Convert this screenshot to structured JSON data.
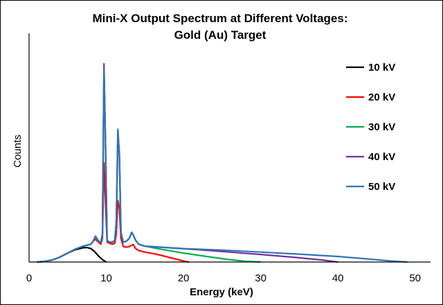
{
  "chart_data": {
    "type": "line",
    "title_line1": "Mini-X Output Spectrum at Different Voltages:",
    "title_line2": "Gold (Au) Target",
    "xlabel": "Energy (keV)",
    "ylabel": "Counts",
    "xlim": [
      0,
      52
    ],
    "ylim": [
      0,
      100
    ],
    "xticks": [
      0,
      10,
      20,
      30,
      40,
      50
    ],
    "grid": false,
    "legend_position": "right",
    "series": [
      {
        "name": "10 kV",
        "color": "#000000",
        "x": [
          1,
          2,
          3,
          4,
          5,
          6,
          7,
          7.5,
          8,
          8.5,
          9,
          9.5,
          10
        ],
        "y": [
          0,
          0.3,
          1,
          2.5,
          4.5,
          6.2,
          7.2,
          7.3,
          6.8,
          5.2,
          3.0,
          1.2,
          0
        ]
      },
      {
        "name": "20 kV",
        "color": "#ff0000",
        "x": [
          1,
          2,
          3,
          4,
          5,
          6,
          7,
          7.5,
          8,
          8.3,
          8.6,
          9,
          9.3,
          9.5,
          9.7,
          9.9,
          10.1,
          10.4,
          10.8,
          11.1,
          11.3,
          11.5,
          11.7,
          11.9,
          12.2,
          12.6,
          13.0,
          13.3,
          13.5,
          13.8,
          14.2,
          15,
          16,
          17,
          18,
          19,
          20,
          20.7
        ],
        "y": [
          0,
          0.3,
          1,
          2.5,
          4.5,
          6.5,
          8,
          8.5,
          9,
          10.5,
          11.5,
          10,
          9,
          12,
          50,
          30,
          10,
          9.5,
          9,
          9.5,
          14,
          31,
          27,
          12,
          7.8,
          7.5,
          7.8,
          8.5,
          8.8,
          6.8,
          5.8,
          5,
          4.3,
          3.5,
          2.5,
          1.5,
          0.5,
          0
        ]
      },
      {
        "name": "30 kV",
        "color": "#00b050",
        "x": [
          1,
          2,
          3,
          4,
          5,
          6,
          7,
          7.5,
          8,
          8.3,
          8.6,
          9,
          9.3,
          9.5,
          9.7,
          9.9,
          10.1,
          10.4,
          10.8,
          11.1,
          11.3,
          11.5,
          11.7,
          11.9,
          12.2,
          12.6,
          13.0,
          13.3,
          13.5,
          13.8,
          14.2,
          15,
          17,
          20,
          23,
          26,
          28,
          30
        ],
        "y": [
          0,
          0.3,
          1,
          2.5,
          4.5,
          6.5,
          8,
          8.5,
          9,
          10.5,
          13,
          10.5,
          10,
          14,
          96,
          60,
          11,
          10,
          10,
          11,
          20,
          64,
          54,
          15,
          10,
          10.5,
          12,
          15,
          13.5,
          11,
          9,
          8,
          6.5,
          4.5,
          2.8,
          1.2,
          0.4,
          0
        ]
      },
      {
        "name": "40 kV",
        "color": "#7030a0",
        "x": [
          1,
          2,
          3,
          4,
          5,
          6,
          7,
          7.5,
          8,
          8.3,
          8.6,
          9,
          9.3,
          9.5,
          9.7,
          9.9,
          10.1,
          10.4,
          10.8,
          11.1,
          11.3,
          11.5,
          11.7,
          11.9,
          12.2,
          12.6,
          13.0,
          13.3,
          13.5,
          13.8,
          14.2,
          15,
          18,
          22,
          26,
          30,
          34,
          38,
          40
        ],
        "y": [
          0,
          0.3,
          1,
          2.5,
          4.5,
          6.5,
          8,
          8.5,
          9,
          10.5,
          13,
          10.5,
          10,
          14,
          100,
          60,
          11,
          10,
          10,
          11,
          20,
          66,
          54,
          15,
          10,
          10.5,
          12,
          15,
          13.5,
          11,
          9,
          8,
          7.2,
          6.2,
          5.0,
          3.8,
          2.5,
          1.0,
          0
        ]
      },
      {
        "name": "50 kV",
        "color": "#2e75b6",
        "x": [
          1,
          2,
          3,
          4,
          5,
          6,
          7,
          7.5,
          8,
          8.3,
          8.6,
          9,
          9.3,
          9.5,
          9.7,
          9.9,
          10.1,
          10.4,
          10.8,
          11.1,
          11.3,
          11.5,
          11.7,
          11.9,
          12.2,
          12.6,
          13.0,
          13.3,
          13.5,
          13.8,
          14.2,
          15,
          20,
          25,
          30,
          35,
          40,
          44,
          47,
          49
        ],
        "y": [
          0,
          0.3,
          1,
          2.5,
          4.5,
          6.5,
          8,
          8.5,
          9,
          10.5,
          13,
          10.5,
          10,
          14,
          98,
          60,
          11,
          10,
          10,
          11,
          20,
          67,
          54,
          15,
          10,
          10.5,
          12,
          15,
          13.5,
          11,
          9,
          8,
          6.8,
          6.0,
          5.0,
          4.0,
          2.8,
          1.5,
          0.5,
          0
        ]
      }
    ]
  }
}
